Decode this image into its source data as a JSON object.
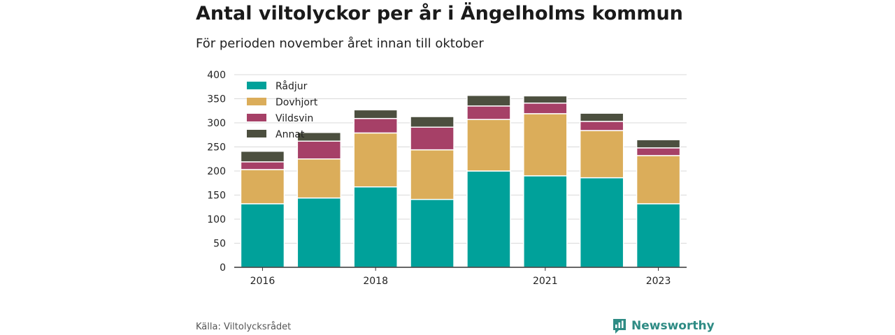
{
  "title": "Antal viltolyckor per år i Ängelholms kommun",
  "subtitle": "För perioden november året innan till oktober",
  "source": "Källa: Viltolycksrådet",
  "brand": "Newsworthy",
  "colors": {
    "Rådjur": "#00a19a",
    "Dovhjort": "#dbad5a",
    "Vildsvin": "#a64067",
    "Annat": "#4c4f3f",
    "brand": "#2e8b84"
  },
  "chart_data": {
    "type": "bar",
    "stacked": true,
    "categories": [
      "2016",
      "2017",
      "2018",
      "2019",
      "2020",
      "2021",
      "2022",
      "2023"
    ],
    "x_tick_labels": [
      "2016",
      "",
      "2018",
      "",
      "",
      "2021",
      "",
      "2023"
    ],
    "series": [
      {
        "name": "Rådjur",
        "values": [
          132,
          144,
          167,
          141,
          200,
          190,
          186,
          132
        ]
      },
      {
        "name": "Dovhjort",
        "values": [
          71,
          81,
          112,
          103,
          107,
          129,
          98,
          100
        ]
      },
      {
        "name": "Vildsvin",
        "values": [
          16,
          37,
          30,
          47,
          28,
          22,
          19,
          16
        ]
      },
      {
        "name": "Annat",
        "values": [
          22,
          18,
          18,
          22,
          22,
          15,
          17,
          17
        ]
      }
    ],
    "ylim": [
      0,
      400
    ],
    "yticks": [
      0,
      50,
      100,
      150,
      200,
      250,
      300,
      350,
      400
    ],
    "xlabel": "",
    "ylabel": "",
    "grid": true,
    "legend": "top-left"
  }
}
